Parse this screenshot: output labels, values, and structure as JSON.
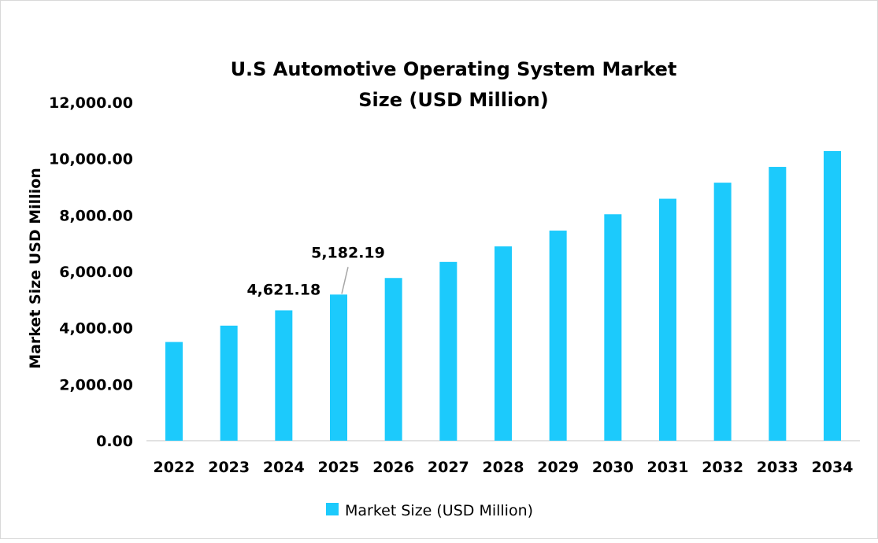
{
  "chart_data": {
    "type": "bar",
    "title": "U.S Automotive Operating System Market Size (USD Million)",
    "title_lines": [
      "U.S Automotive Operating System Market",
      "Size (USD Million)"
    ],
    "ylabel": "Market Size USD Million",
    "xlabel": "",
    "ylim": [
      0,
      12000
    ],
    "yticks": [
      "0.00",
      "2,000.00",
      "4,000.00",
      "6,000.00",
      "8,000.00",
      "10,000.00",
      "12,000.00"
    ],
    "grid": false,
    "legend_position": "bottom",
    "categories": [
      "2022",
      "2023",
      "2024",
      "2025",
      "2026",
      "2027",
      "2028",
      "2029",
      "2030",
      "2031",
      "2032",
      "2033",
      "2034"
    ],
    "series": [
      {
        "name": "Market Size (USD Million)",
        "color": "#1CCAFC",
        "values": [
          3500,
          4080,
          4621.18,
          5182.19,
          5770,
          6340,
          6890,
          7450,
          8030,
          8580,
          9150,
          9710,
          10270
        ]
      }
    ],
    "data_labels": [
      {
        "category": "2024",
        "text": "4,621.18"
      },
      {
        "category": "2025",
        "text": "5,182.19"
      }
    ]
  }
}
